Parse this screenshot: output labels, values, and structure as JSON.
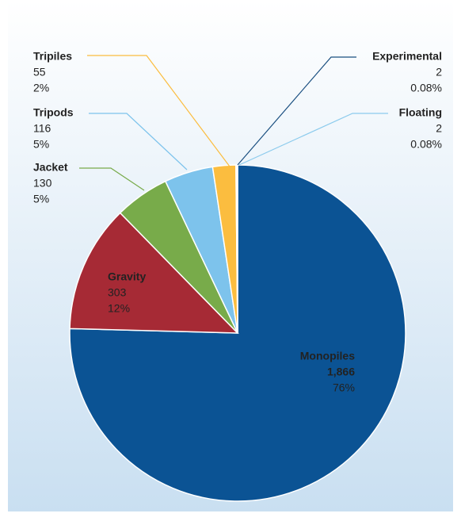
{
  "chart_data": {
    "type": "pie",
    "categories": [
      "Monopiles",
      "Gravity",
      "Jacket",
      "Tripods",
      "Tripiles",
      "Floating",
      "Experimental"
    ],
    "values": [
      1866,
      303,
      130,
      116,
      55,
      2,
      2
    ],
    "value_labels": [
      "1,866",
      "303",
      "130",
      "116",
      "55",
      "2",
      "2"
    ],
    "percent_labels": [
      "76%",
      "12%",
      "5%",
      "5%",
      "2%",
      "0.08%",
      "0.08%"
    ],
    "colors": [
      "#0b5394",
      "#a62a35",
      "#78ab4a",
      "#7dc3ec",
      "#fbbd3f",
      "#8ccbed",
      "#1a4f80"
    ]
  }
}
